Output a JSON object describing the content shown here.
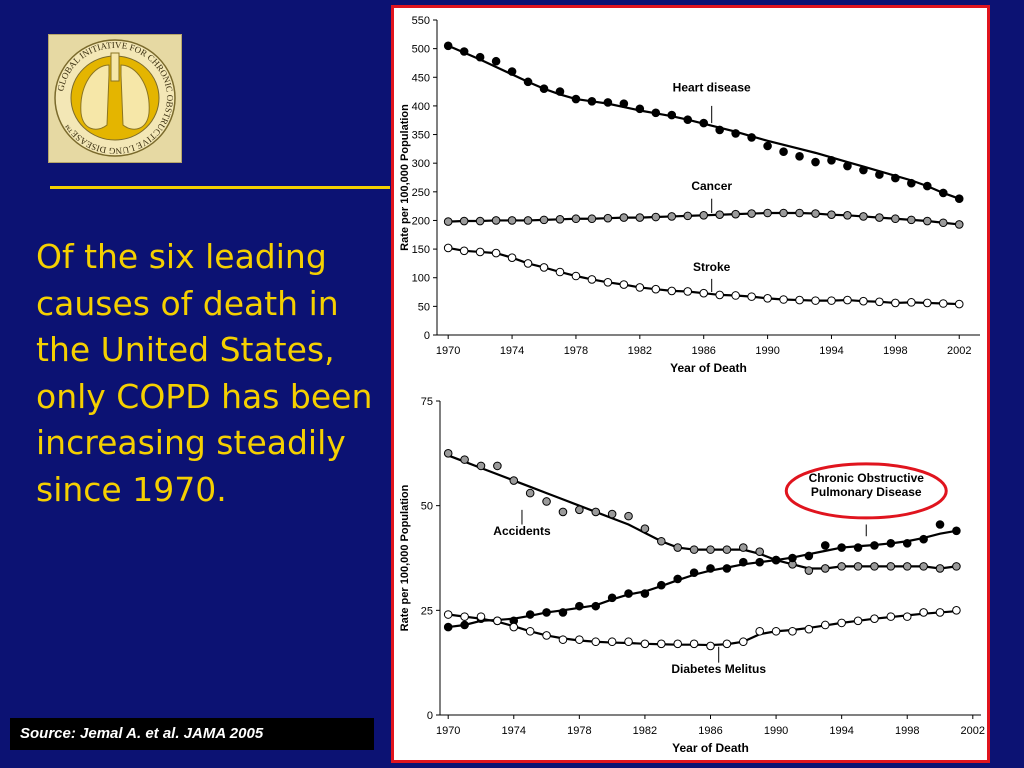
{
  "headline": "Of the six leading causes of death in the United States, only COPD has been increasing steadily since 1970.",
  "source": "Source:  Jemal A. et al.  JAMA 2005",
  "logo": {
    "ring_text": "GLOBAL INITIATIVE FOR CHRONIC OBSTRUCTIVE LUNG DISEASE™",
    "icon": "lungs-icon"
  },
  "colors": {
    "background": "#0c1273",
    "headline": "#f5d000",
    "frame": "#e0141e",
    "highlight": "#e0141e"
  },
  "chart_data": [
    {
      "type": "line",
      "ylabel": "Rate per 100,000 Population",
      "xlabel": "Year of Death",
      "ylim": [
        0,
        550
      ],
      "xlim": [
        1970,
        2002
      ],
      "yticks": [
        0,
        50,
        100,
        150,
        200,
        250,
        300,
        350,
        400,
        450,
        500,
        550
      ],
      "xticks": [
        1970,
        1974,
        1978,
        1982,
        1986,
        1990,
        1994,
        1998,
        2002
      ],
      "x": [
        1970,
        1971,
        1972,
        1973,
        1974,
        1975,
        1976,
        1977,
        1978,
        1979,
        1980,
        1981,
        1982,
        1983,
        1984,
        1985,
        1986,
        1987,
        1988,
        1989,
        1990,
        1991,
        1992,
        1993,
        1994,
        1995,
        1996,
        1997,
        1998,
        1999,
        2000,
        2001,
        2002
      ],
      "series": [
        {
          "name": "Heart disease",
          "marker": "black",
          "values": [
            505,
            495,
            485,
            478,
            460,
            442,
            430,
            425,
            412,
            408,
            406,
            404,
            395,
            388,
            384,
            376,
            370,
            358,
            352,
            345,
            330,
            320,
            312,
            302,
            305,
            295,
            288,
            280,
            274,
            265,
            260,
            248,
            238
          ],
          "fit": [
            505,
            493,
            481,
            468,
            455,
            442,
            430,
            420,
            412,
            408,
            404,
            398,
            392,
            387,
            382,
            376,
            369,
            362,
            355,
            347,
            339,
            332,
            325,
            318,
            310,
            302,
            294,
            286,
            278,
            270,
            260,
            248,
            238
          ],
          "label_x": 1986.5,
          "label_y": 425,
          "leader_y": [
            400,
            370
          ]
        },
        {
          "name": "Cancer",
          "marker": "gray",
          "values": [
            198,
            199,
            199,
            200,
            200,
            200,
            201,
            202,
            203,
            203,
            204,
            205,
            205,
            206,
            207,
            208,
            209,
            210,
            211,
            212,
            213,
            213,
            213,
            212,
            210,
            209,
            207,
            205,
            203,
            201,
            199,
            196,
            193
          ],
          "fit": [
            198,
            199,
            199,
            200,
            200,
            200,
            201,
            202,
            203,
            203,
            204,
            205,
            205,
            206,
            207,
            208,
            209,
            210,
            211,
            212,
            213,
            213,
            213,
            212,
            210,
            209,
            207,
            205,
            203,
            201,
            199,
            196,
            193
          ],
          "label_x": 1986.5,
          "label_y": 253,
          "leader_y": [
            238,
            213
          ]
        },
        {
          "name": "Stroke",
          "marker": "white",
          "values": [
            152,
            147,
            145,
            143,
            135,
            125,
            118,
            110,
            103,
            97,
            92,
            88,
            83,
            80,
            77,
            76,
            73,
            70,
            69,
            67,
            64,
            62,
            61,
            60,
            60,
            61,
            59,
            58,
            56,
            57,
            56,
            55,
            54
          ],
          "fit": [
            152,
            147,
            145,
            143,
            135,
            125,
            118,
            110,
            103,
            97,
            92,
            88,
            83,
            80,
            77,
            76,
            73,
            70,
            69,
            67,
            64,
            62,
            61,
            60,
            60,
            61,
            59,
            58,
            56,
            57,
            56,
            55,
            54
          ],
          "label_x": 1986.5,
          "label_y": 112,
          "leader_y": [
            98,
            75
          ]
        }
      ]
    },
    {
      "type": "line",
      "ylabel": "Rate per 100,000 Population",
      "xlabel": "Year of Death",
      "ylim": [
        0,
        75
      ],
      "xlim": [
        1970,
        2002
      ],
      "yticks": [
        0,
        25,
        50,
        75
      ],
      "xticks": [
        1970,
        1974,
        1978,
        1982,
        1986,
        1990,
        1994,
        1998,
        2002
      ],
      "x": [
        1970,
        1971,
        1972,
        1973,
        1974,
        1975,
        1976,
        1977,
        1978,
        1979,
        1980,
        1981,
        1982,
        1983,
        1984,
        1985,
        1986,
        1987,
        1988,
        1989,
        1990,
        1991,
        1992,
        1993,
        1994,
        1995,
        1996,
        1997,
        1998,
        1999,
        2000,
        2001
      ],
      "series": [
        {
          "name": "Accidents",
          "marker": "gray",
          "values": [
            62.5,
            61,
            59.5,
            59.5,
            56,
            53,
            51,
            48.5,
            49,
            48.5,
            48,
            47.5,
            44.5,
            41.5,
            40,
            39.5,
            39.5,
            39.5,
            40,
            39,
            37,
            36,
            34.5,
            35,
            35.5,
            35.5,
            35.5,
            35.5,
            35.5,
            35.5,
            35,
            35.5
          ],
          "fit": [
            62,
            60.5,
            59,
            57.5,
            56,
            54.5,
            53,
            51.5,
            50,
            48.5,
            47,
            45.5,
            43.5,
            41.5,
            40,
            39.5,
            39.5,
            39.5,
            39.5,
            38.5,
            37,
            36,
            35,
            35,
            35.5,
            35.5,
            35.5,
            35.5,
            35.5,
            35.5,
            35,
            35.5
          ],
          "label_x": 1974.5,
          "label_y": 43,
          "leader_y": [
            45.5,
            49
          ]
        },
        {
          "name": "Chronic Obstructive Pulmonary Disease",
          "marker": "black",
          "values": [
            21,
            21.5,
            23,
            22.5,
            22.5,
            24,
            24.5,
            24.5,
            26,
            26,
            28,
            29,
            29,
            31,
            32.5,
            34,
            35,
            35,
            36.5,
            36.5,
            37,
            37.5,
            38,
            40.5,
            40,
            40,
            40.5,
            41,
            41,
            42,
            45.5,
            44
          ],
          "fit": [
            21,
            21.5,
            22.5,
            22.7,
            23,
            23.7,
            24.5,
            25,
            25.6,
            26.2,
            27.6,
            28.8,
            29.5,
            30.8,
            32.2,
            33.5,
            34.5,
            35.2,
            36,
            36.5,
            37,
            37.6,
            38.4,
            39.2,
            40,
            40.3,
            40.6,
            41,
            41.5,
            42.3,
            43.3,
            44
          ],
          "label_x": 1995.5,
          "label_y": 54,
          "leader_y": [
            45.5,
            42.7
          ]
        },
        {
          "name": "Diabetes Melitus",
          "marker": "white",
          "values": [
            24,
            23.5,
            23.5,
            22.5,
            21,
            20,
            19,
            18,
            18,
            17.5,
            17.5,
            17.5,
            17,
            17,
            17,
            17,
            16.5,
            17,
            17.5,
            20,
            20,
            20,
            20.5,
            21.5,
            22,
            22.5,
            23,
            23.5,
            23.5,
            24.5,
            24.5,
            25
          ],
          "fit": [
            24,
            23.5,
            23,
            22.3,
            21.2,
            20,
            19,
            18.3,
            17.8,
            17.5,
            17.3,
            17.2,
            17,
            16.9,
            16.8,
            16.8,
            16.7,
            16.9,
            17.5,
            19.3,
            20,
            20.3,
            20.8,
            21.4,
            22,
            22.5,
            23,
            23.4,
            23.8,
            24.2,
            24.5,
            24.8
          ],
          "label_x": 1986.5,
          "label_y": 10,
          "leader_y": [
            12.5,
            16.3
          ]
        }
      ]
    }
  ]
}
